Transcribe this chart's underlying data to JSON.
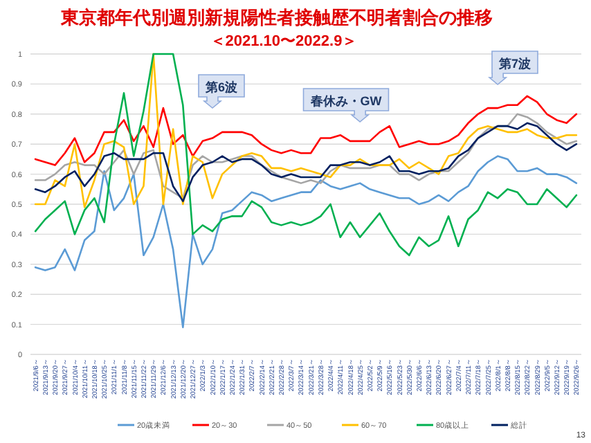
{
  "chart_data": {
    "type": "line",
    "title": "東京都年代別週別新規陽性者接触歴不明者割合の推移",
    "subtitle": "＜2021.10〜2022.9＞",
    "categories": [
      "2021/9/6～",
      "2021/9/13～",
      "2021/9/20～",
      "2021/9/27～",
      "2021/10/4～",
      "2021/10/11～",
      "2021/10/18～",
      "2021/10/25～",
      "2021/11/1～",
      "2021/11/8～",
      "2021/11/15～",
      "2021/11/22～",
      "2021/11/29～",
      "2021/12/6～",
      "2021/12/13～",
      "2021/12/20～",
      "2021/12/27～",
      "2022/1/3～",
      "2022/1/10～",
      "2022/1/17～",
      "2022/1/24～",
      "2022/1/31～",
      "2022/2/7～",
      "2022/2/14～",
      "2022/2/21～",
      "2022/2/28～",
      "2022/3/7～",
      "2022/3/14～",
      "2022/3/21～",
      "2022/3/28～",
      "2022/4/4～",
      "2022/4/11～",
      "2022/4/18～",
      "2022/4/25～",
      "2022/5/2～",
      "2022/5/9～",
      "2022/5/16～",
      "2022/5/23～",
      "2022/5/30～",
      "2022/6/6～",
      "2022/6/13～",
      "2022/6/20～",
      "2022/6/27～",
      "2022/7/4～",
      "2022/7/11～",
      "2022/7/18～",
      "2022/7/25～",
      "2022/8/1～",
      "2022/8/8～",
      "2022/8/15～",
      "2022/8/22～",
      "2022/8/29～",
      "2022/9/5～",
      "2022/9/12～",
      "2022/9/19～",
      "2022/9/26～"
    ],
    "series": [
      {
        "name": "20歳未満",
        "color": "#5b9bd5",
        "values": [
          0.29,
          0.28,
          0.29,
          0.35,
          0.28,
          0.38,
          0.41,
          0.61,
          0.48,
          0.52,
          0.6,
          0.33,
          0.39,
          0.5,
          0.35,
          0.09,
          0.4,
          0.3,
          0.35,
          0.47,
          0.48,
          0.51,
          0.54,
          0.53,
          0.51,
          0.52,
          0.53,
          0.54,
          0.54,
          0.58,
          0.56,
          0.55,
          0.56,
          0.57,
          0.55,
          0.54,
          0.53,
          0.52,
          0.52,
          0.5,
          0.51,
          0.53,
          0.51,
          0.54,
          0.56,
          0.61,
          0.64,
          0.66,
          0.65,
          0.61,
          0.61,
          0.62,
          0.6,
          0.6,
          0.59,
          0.57
        ]
      },
      {
        "name": "20～30",
        "color": "#ff0000",
        "values": [
          0.65,
          0.64,
          0.63,
          0.67,
          0.72,
          0.64,
          0.67,
          0.74,
          0.74,
          0.78,
          0.71,
          0.76,
          0.69,
          0.82,
          0.7,
          0.73,
          0.66,
          0.71,
          0.72,
          0.74,
          0.74,
          0.74,
          0.73,
          0.7,
          0.68,
          0.67,
          0.68,
          0.67,
          0.67,
          0.72,
          0.72,
          0.73,
          0.71,
          0.71,
          0.71,
          0.74,
          0.76,
          0.69,
          0.7,
          0.71,
          0.7,
          0.7,
          0.71,
          0.73,
          0.77,
          0.8,
          0.82,
          0.82,
          0.83,
          0.83,
          0.86,
          0.84,
          0.8,
          0.78,
          0.77,
          0.8
        ]
      },
      {
        "name": "40～50",
        "color": "#a5a5a5",
        "values": [
          0.58,
          0.58,
          0.6,
          0.63,
          0.64,
          0.63,
          0.63,
          0.6,
          0.64,
          0.68,
          0.6,
          0.67,
          0.68,
          0.56,
          0.54,
          0.52,
          0.63,
          0.66,
          0.64,
          0.64,
          0.65,
          0.66,
          0.66,
          0.63,
          0.61,
          0.59,
          0.58,
          0.57,
          0.58,
          0.57,
          0.61,
          0.63,
          0.62,
          0.62,
          0.62,
          0.63,
          0.63,
          0.6,
          0.6,
          0.58,
          0.6,
          0.61,
          0.61,
          0.64,
          0.67,
          0.72,
          0.75,
          0.76,
          0.76,
          0.8,
          0.79,
          0.77,
          0.74,
          0.72,
          0.7,
          0.71
        ]
      },
      {
        "name": "60～70",
        "color": "#ffc000",
        "values": [
          0.5,
          0.5,
          0.58,
          0.56,
          0.7,
          0.49,
          0.58,
          0.7,
          0.71,
          0.69,
          0.5,
          0.56,
          1.0,
          0.5,
          0.75,
          0.5,
          0.66,
          0.64,
          0.52,
          0.6,
          0.63,
          0.66,
          0.67,
          0.66,
          0.62,
          0.62,
          0.61,
          0.62,
          0.61,
          0.6,
          0.59,
          0.63,
          0.63,
          0.65,
          0.63,
          0.63,
          0.63,
          0.65,
          0.62,
          0.64,
          0.62,
          0.6,
          0.66,
          0.67,
          0.72,
          0.75,
          0.76,
          0.75,
          0.74,
          0.74,
          0.75,
          0.73,
          0.72,
          0.72,
          0.73,
          0.73
        ]
      },
      {
        "name": "80歳以上",
        "color": "#00b050",
        "values": [
          0.41,
          0.45,
          0.48,
          0.51,
          0.4,
          0.48,
          0.52,
          0.44,
          0.7,
          0.87,
          0.66,
          0.81,
          1.0,
          1.0,
          1.0,
          0.83,
          0.4,
          0.43,
          0.41,
          0.45,
          0.46,
          0.46,
          0.51,
          0.49,
          0.44,
          0.43,
          0.44,
          0.43,
          0.44,
          0.46,
          0.5,
          0.39,
          0.44,
          0.39,
          0.43,
          0.47,
          0.41,
          0.36,
          0.33,
          0.39,
          0.36,
          0.38,
          0.46,
          0.36,
          0.45,
          0.48,
          0.54,
          0.52,
          0.55,
          0.54,
          0.5,
          0.5,
          0.55,
          0.52,
          0.49,
          0.53
        ]
      },
      {
        "name": "総計",
        "color": "#002060",
        "values": [
          0.55,
          0.54,
          0.56,
          0.59,
          0.61,
          0.56,
          0.6,
          0.66,
          0.67,
          0.65,
          0.65,
          0.65,
          0.67,
          0.67,
          0.56,
          0.51,
          0.59,
          0.63,
          0.64,
          0.66,
          0.64,
          0.65,
          0.65,
          0.63,
          0.6,
          0.59,
          0.6,
          0.59,
          0.59,
          0.59,
          0.63,
          0.63,
          0.64,
          0.64,
          0.63,
          0.64,
          0.66,
          0.61,
          0.61,
          0.6,
          0.61,
          0.61,
          0.62,
          0.66,
          0.68,
          0.72,
          0.74,
          0.76,
          0.76,
          0.75,
          0.77,
          0.76,
          0.73,
          0.7,
          0.68,
          0.7
        ]
      }
    ],
    "ylim": [
      0,
      1
    ],
    "yticks": [
      0,
      0.1,
      0.2,
      0.3,
      0.4,
      0.5,
      0.6,
      0.7,
      0.8,
      0.9,
      1
    ],
    "grid": "y",
    "legend": "bottom",
    "marker": "none",
    "line_style": "solid",
    "annotations": [
      "第6波",
      "春休み・GW",
      "第7波",
      "13"
    ]
  }
}
